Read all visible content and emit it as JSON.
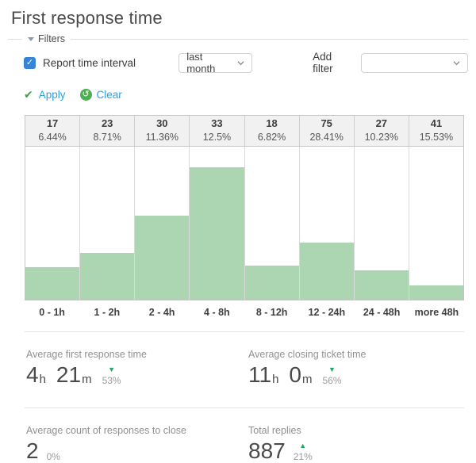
{
  "page": {
    "title": "First response time"
  },
  "filters": {
    "legend": "Filters",
    "checkbox_label": "Report time interval",
    "checkbox_checked": true,
    "interval_value": "last month",
    "add_filter_label": "Add filter",
    "add_filter_value": "",
    "apply_label": "Apply",
    "clear_label": "Clear"
  },
  "icons": {
    "checkbox_glyph": "✓",
    "apply_glyph": "✔",
    "clear_glyph": "↺",
    "trend_up_glyph": "▲",
    "trend_down_glyph": "▼"
  },
  "colors": {
    "bar_green": "#abd6b1",
    "trend_green": "#21a464",
    "link_blue": "#29a3e2",
    "checkbox_blue": "#3584d6"
  },
  "chart_data": {
    "type": "bar",
    "title": "First response time distribution",
    "categories": [
      "0 - 1h",
      "1 - 2h",
      "2 - 4h",
      "4 - 8h",
      "8 - 12h",
      "12 - 24h",
      "24 - 48h",
      "more 48h"
    ],
    "values": [
      17,
      23,
      30,
      33,
      18,
      75,
      27,
      41
    ],
    "percent_labels": [
      "6.44%",
      "8.71%",
      "11.36%",
      "12.5%",
      "6.82%",
      "28.41%",
      "10.23%",
      "15.53%"
    ],
    "bar_heights_pct": [
      21,
      30.5,
      55,
      86.5,
      22.5,
      37.5,
      19,
      9.3
    ],
    "xlabel": "",
    "ylabel": "",
    "grid": false,
    "legend_position": "none"
  },
  "stats": [
    {
      "label": "Average first response time",
      "value": [
        {
          "n": "4",
          "u": "h"
        },
        {
          "n": "21",
          "u": "m"
        }
      ],
      "trend": "down",
      "pct": "53%"
    },
    {
      "label": "Average closing ticket time",
      "value": [
        {
          "n": "11",
          "u": "h"
        },
        {
          "n": "0",
          "u": "m"
        }
      ],
      "trend": "down",
      "pct": "56%"
    },
    {
      "label": "Average count of responses to close",
      "value": [
        {
          "n": "2",
          "u": ""
        }
      ],
      "trend": "none",
      "pct": "0%"
    },
    {
      "label": "Total replies",
      "value": [
        {
          "n": "887",
          "u": ""
        }
      ],
      "trend": "up",
      "pct": "21%"
    }
  ]
}
